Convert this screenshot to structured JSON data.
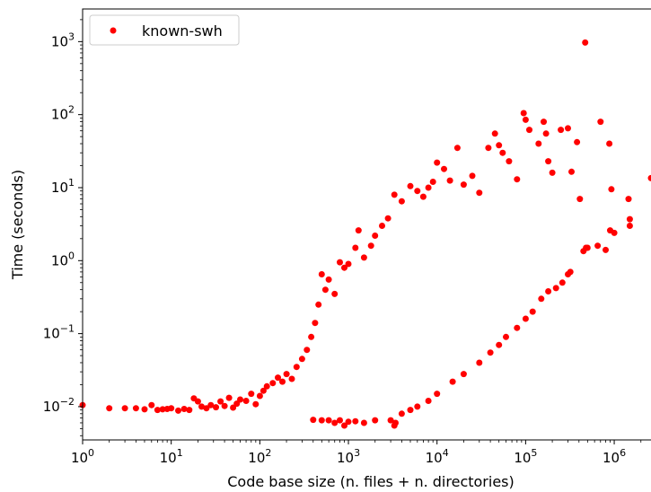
{
  "chart_data": {
    "type": "scatter",
    "x_scale": "log",
    "y_scale": "log",
    "xlabel": "Code base size (n. files + n. directories)",
    "ylabel": "Time (seconds)",
    "xlim": [
      1,
      2600000
    ],
    "ylim": [
      0.0035,
      2800
    ],
    "x_ticks": [
      {
        "value": 1,
        "base": "10",
        "exp": "0"
      },
      {
        "value": 10,
        "base": "10",
        "exp": "1"
      },
      {
        "value": 100,
        "base": "10",
        "exp": "2"
      },
      {
        "value": 1000,
        "base": "10",
        "exp": "3"
      },
      {
        "value": 10000,
        "base": "10",
        "exp": "4"
      },
      {
        "value": 100000,
        "base": "10",
        "exp": "5"
      },
      {
        "value": 1000000,
        "base": "10",
        "exp": "6"
      }
    ],
    "y_ticks": [
      {
        "value": 0.01,
        "base": "10",
        "exp": "−2"
      },
      {
        "value": 0.1,
        "base": "10",
        "exp": "−1"
      },
      {
        "value": 1,
        "base": "10",
        "exp": "0"
      },
      {
        "value": 10,
        "base": "10",
        "exp": "1"
      },
      {
        "value": 100,
        "base": "10",
        "exp": "2"
      },
      {
        "value": 1000,
        "base": "10",
        "exp": "3"
      }
    ],
    "grid": false,
    "legend_position": "upper-left",
    "series": [
      {
        "name": "known-swh",
        "color": "#ff0000",
        "points": [
          [
            1,
            0.0105
          ],
          [
            2,
            0.0095
          ],
          [
            3,
            0.0095
          ],
          [
            4,
            0.0095
          ],
          [
            5,
            0.0092
          ],
          [
            6,
            0.0105
          ],
          [
            7,
            0.009
          ],
          [
            8,
            0.0092
          ],
          [
            9,
            0.0093
          ],
          [
            10,
            0.0095
          ],
          [
            12,
            0.0088
          ],
          [
            14,
            0.0093
          ],
          [
            16,
            0.009
          ],
          [
            18,
            0.013
          ],
          [
            20,
            0.0118
          ],
          [
            22,
            0.01
          ],
          [
            25,
            0.0095
          ],
          [
            28,
            0.0105
          ],
          [
            32,
            0.0098
          ],
          [
            36,
            0.0118
          ],
          [
            40,
            0.0102
          ],
          [
            45,
            0.0132
          ],
          [
            50,
            0.0097
          ],
          [
            55,
            0.011
          ],
          [
            60,
            0.0125
          ],
          [
            70,
            0.012
          ],
          [
            80,
            0.015
          ],
          [
            90,
            0.0108
          ],
          [
            100,
            0.014
          ],
          [
            110,
            0.0165
          ],
          [
            120,
            0.019
          ],
          [
            140,
            0.021
          ],
          [
            160,
            0.025
          ],
          [
            180,
            0.022
          ],
          [
            200,
            0.028
          ],
          [
            230,
            0.024
          ],
          [
            260,
            0.035
          ],
          [
            300,
            0.045
          ],
          [
            340,
            0.06
          ],
          [
            380,
            0.09
          ],
          [
            420,
            0.14
          ],
          [
            460,
            0.25
          ],
          [
            500,
            0.65
          ],
          [
            550,
            0.4
          ],
          [
            600,
            0.55
          ],
          [
            700,
            0.35
          ],
          [
            800,
            0.95
          ],
          [
            900,
            0.8
          ],
          [
            1000,
            0.9
          ],
          [
            1200,
            1.5
          ],
          [
            1300,
            2.6
          ],
          [
            1500,
            1.1
          ],
          [
            1800,
            1.6
          ],
          [
            2000,
            2.2
          ],
          [
            2400,
            3.0
          ],
          [
            2800,
            3.8
          ],
          [
            3300,
            8.0
          ],
          [
            4000,
            6.5
          ],
          [
            5000,
            10.5
          ],
          [
            6000,
            9.0
          ],
          [
            7000,
            7.5
          ],
          [
            8000,
            10.0
          ],
          [
            9000,
            12.0
          ],
          [
            10000,
            22.0
          ],
          [
            12000,
            18.0
          ],
          [
            14000,
            12.5
          ],
          [
            17000,
            35.0
          ],
          [
            20000,
            11.0
          ],
          [
            25000,
            14.5
          ],
          [
            30000,
            8.5
          ],
          [
            38000,
            35.0
          ],
          [
            45000,
            55.0
          ],
          [
            50000,
            38.0
          ],
          [
            55000,
            30.0
          ],
          [
            65000,
            23.0
          ],
          [
            80000,
            13.0
          ],
          [
            95000,
            105.0
          ],
          [
            100000,
            85.0
          ],
          [
            110000,
            62.0
          ],
          [
            140000,
            40.0
          ],
          [
            160000,
            80.0
          ],
          [
            170000,
            55.0
          ],
          [
            180000,
            23.0
          ],
          [
            200000,
            16.0
          ],
          [
            250000,
            62.0
          ],
          [
            300000,
            65.0
          ],
          [
            330000,
            16.5
          ],
          [
            380000,
            42.0
          ],
          [
            410000,
            7.0
          ],
          [
            470000,
            970.0
          ],
          [
            500000,
            1.5
          ],
          [
            650000,
            1.6
          ],
          [
            700000,
            80.0
          ],
          [
            880000,
            40.0
          ],
          [
            930000,
            9.5
          ],
          [
            1000000,
            2.4
          ],
          [
            1450000,
            7.0
          ],
          [
            1500000,
            3.0
          ],
          [
            1500000,
            3.7
          ],
          [
            2600000,
            13.5
          ],
          [
            450000,
            1.35
          ],
          [
            800000,
            1.4
          ],
          [
            900000,
            2.6
          ],
          [
            480000,
            1.5
          ],
          [
            300000,
            0.65
          ],
          [
            320000,
            0.7
          ],
          [
            260000,
            0.5
          ],
          [
            220000,
            0.42
          ],
          [
            180000,
            0.38
          ],
          [
            150000,
            0.3
          ],
          [
            120000,
            0.2
          ],
          [
            100000,
            0.16
          ],
          [
            80000,
            0.12
          ],
          [
            60000,
            0.09
          ],
          [
            50000,
            0.07
          ],
          [
            40000,
            0.055
          ],
          [
            30000,
            0.04
          ],
          [
            20000,
            0.028
          ],
          [
            15000,
            0.022
          ],
          [
            10000,
            0.015
          ],
          [
            8000,
            0.012
          ],
          [
            6000,
            0.01
          ],
          [
            5000,
            0.009
          ],
          [
            4000,
            0.008
          ],
          [
            3000,
            0.0065
          ],
          [
            2000,
            0.0065
          ],
          [
            1500,
            0.006
          ],
          [
            1200,
            0.0063
          ],
          [
            1000,
            0.0062
          ],
          [
            800,
            0.0065
          ],
          [
            700,
            0.006
          ],
          [
            600,
            0.0065
          ],
          [
            500,
            0.0065
          ],
          [
            400,
            0.0066
          ],
          [
            3300,
            0.0055
          ],
          [
            3400,
            0.006
          ],
          [
            900,
            0.0055
          ]
        ]
      }
    ]
  }
}
